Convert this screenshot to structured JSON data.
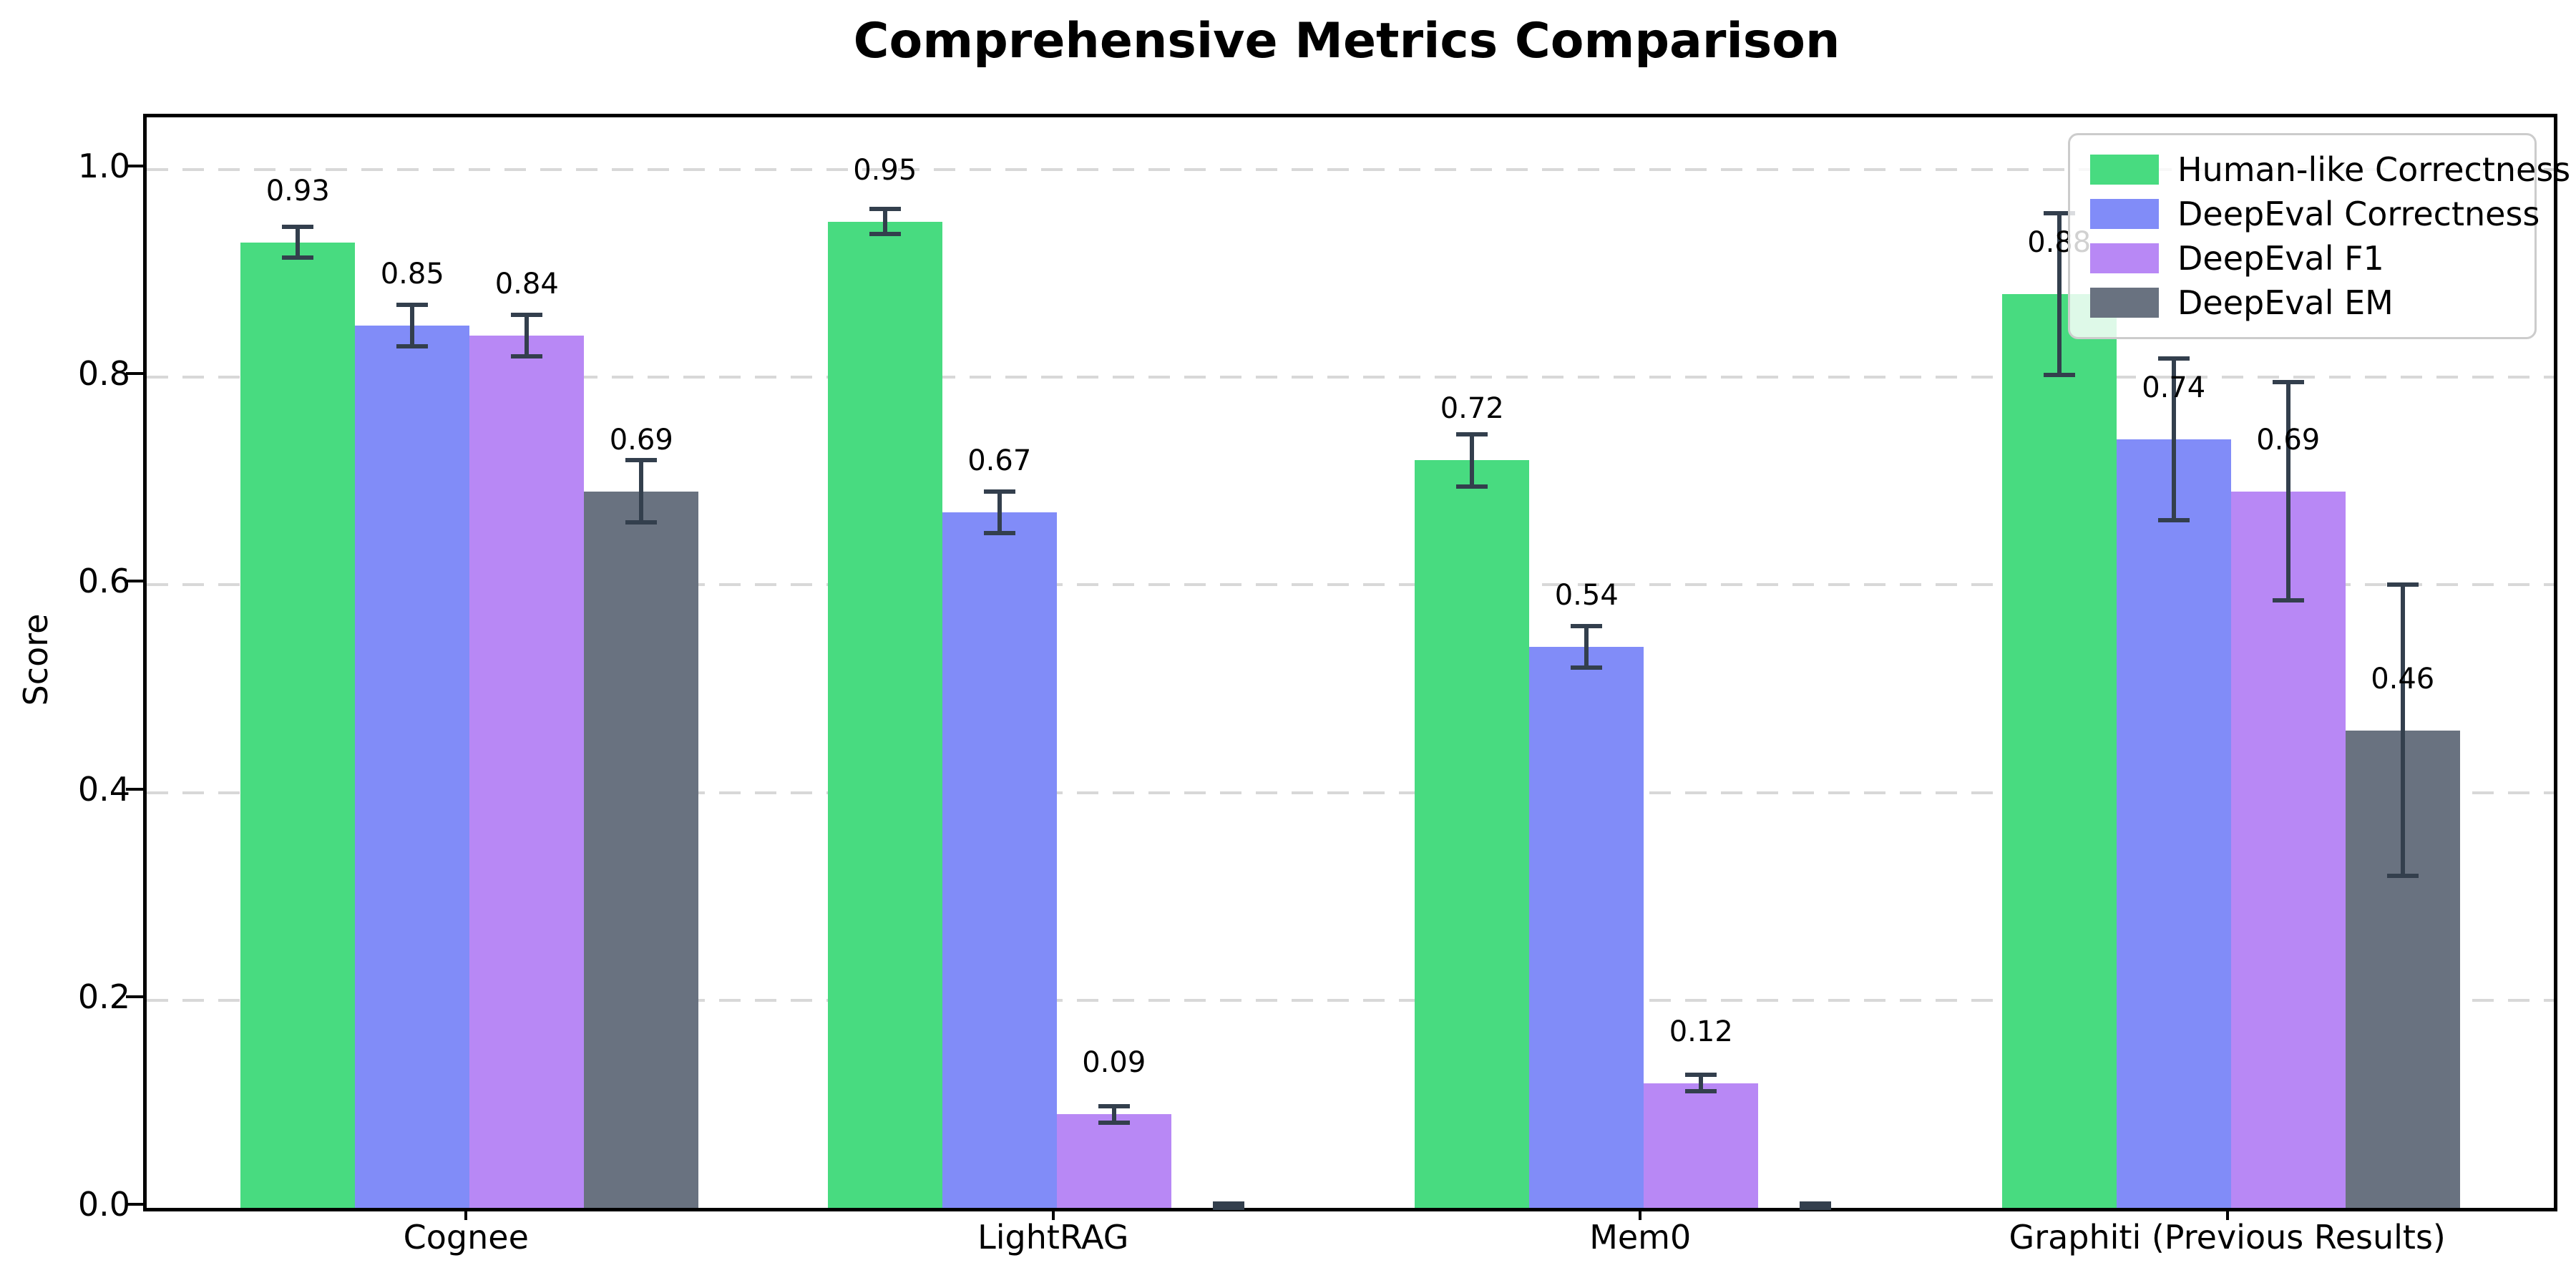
{
  "figure": {
    "background": "#ffffff"
  },
  "chart_data": {
    "type": "bar",
    "title": "Comprehensive Metrics Comparison",
    "xlabel": "",
    "ylabel": "Score",
    "ylim": [
      0,
      1.05
    ],
    "y_ticks": [
      "0.0",
      "0.2",
      "0.4",
      "0.6",
      "0.8",
      "1.0"
    ],
    "grid": "horizontal-dashed",
    "gridline_color": "#d8d8d8",
    "error_bar_color": "#333f4d",
    "legend_position": "upper-right",
    "categories": [
      "Cognee",
      "LightRAG",
      "Mem0",
      "Graphiti (Previous Results)"
    ],
    "series": [
      {
        "name": "Human-like Correctness",
        "color": "#48db80",
        "values": [
          0.93,
          0.95,
          0.72,
          0.88
        ],
        "errors": [
          0.015,
          0.012,
          0.025,
          0.078
        ],
        "labels": [
          "0.93",
          "0.95",
          "0.72",
          "0.88"
        ]
      },
      {
        "name": "DeepEval Correctness",
        "color": "#818cf8",
        "values": [
          0.85,
          0.67,
          0.54,
          0.74
        ],
        "errors": [
          0.02,
          0.02,
          0.02,
          0.078
        ],
        "labels": [
          "0.85",
          "0.67",
          "0.54",
          "0.74"
        ]
      },
      {
        "name": "DeepEval F1",
        "color": "#b888f5",
        "values": [
          0.84,
          0.09,
          0.12,
          0.69
        ],
        "errors": [
          0.02,
          0.008,
          0.008,
          0.105
        ],
        "labels": [
          "0.84",
          "0.09",
          "0.12",
          "0.69"
        ]
      },
      {
        "name": "DeepEval EM",
        "color": "#697280",
        "values": [
          0.69,
          0.0,
          0.0,
          0.46
        ],
        "errors": [
          0.03,
          0.004,
          0.004,
          0.14
        ],
        "labels": [
          "0.69",
          "",
          "",
          "0.46"
        ]
      }
    ]
  }
}
